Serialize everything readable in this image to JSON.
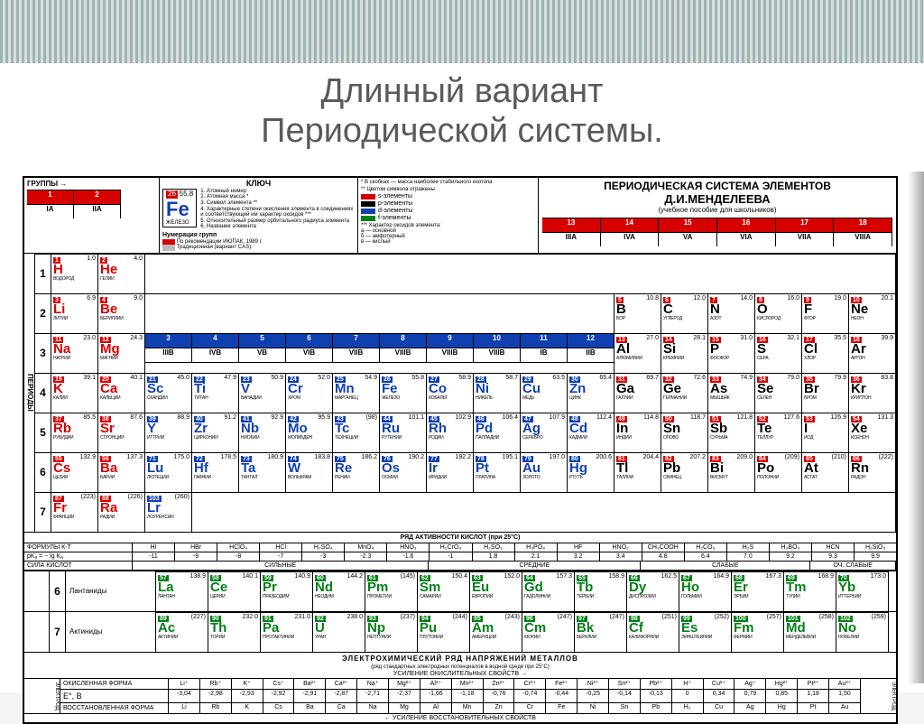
{
  "title_line1": "Длинный вариант",
  "title_line2": "Периодической системы.",
  "labels": {
    "groups": "ГРУППЫ →",
    "periods": "ПЕРИОДЫ",
    "key": "КЛЮЧ",
    "main_title1": "ПЕРИОДИЧЕСКАЯ СИСТЕМА ЭЛЕМЕНТОВ",
    "main_title2": "Д.И.МЕНДЕЛЕЕВА",
    "subtitle": "(учебное пособие для школьников)",
    "legend_caption": "** Цветом символа отражены",
    "legend_s": "s-элементы",
    "legend_p": "p-элементы",
    "legend_d": "d-элементы",
    "legend_f": "f-элементы",
    "key1": "1. Атомный номер",
    "key2": "2. Атомная масса *",
    "key3": "3. Символ элемента **",
    "key4": "4. Характерные степени окисления элемента в соединениях и соответствующий им характер оксидов ***",
    "key5": "5. Относительный размер орбитального радиуса элемента",
    "key6": "6. Название элемента",
    "nummer": "Нумерация групп",
    "iupac": "По рекомендации ИЮПАК, 1989 г.",
    "cas": "Традиционная (вариант CAS)",
    "stable": "* В скобках — масса наиболее стабильного изотопа",
    "oxide_char": "*** Характер оксидов элемента:",
    "ox_a": "а — основной",
    "ox_b": "б — амфотерный",
    "ox_c": "в — кислый",
    "ox_abc": "а б в"
  },
  "fe": {
    "num": "26",
    "mass": "55.8",
    "sym": "Fe",
    "name": "ЖЕЛЕЗО"
  },
  "groups_iupac": [
    "1",
    "2",
    "3",
    "4",
    "5",
    "6",
    "7",
    "8",
    "9",
    "10",
    "11",
    "12",
    "13",
    "14",
    "15",
    "16",
    "17",
    "18"
  ],
  "groups_cas": [
    "IA",
    "IIA",
    "IIIB",
    "IVB",
    "VB",
    "VIB",
    "VIIB",
    "VIIIB",
    "VIIIB",
    "VIIIB",
    "IB",
    "IIB",
    "IIIA",
    "IVA",
    "VA",
    "VIA",
    "VIIA",
    "VIIIA"
  ],
  "periods": [
    [
      {
        "n": 1,
        "m": "1.0",
        "s": "H",
        "c": "s",
        "nm": "ВОДОРОД"
      },
      {
        "n": 2,
        "m": "4.0",
        "s": "He",
        "c": "s",
        "nm": "ГЕЛИЙ"
      }
    ],
    [
      {
        "n": 3,
        "m": "6.9",
        "s": "Li",
        "c": "s",
        "nm": "ЛИТИЙ"
      },
      {
        "n": 4,
        "m": "9.0",
        "s": "Be",
        "c": "s",
        "nm": "БЕРИЛЛИЙ"
      },
      null,
      null,
      null,
      null,
      null,
      null,
      null,
      null,
      null,
      null,
      {
        "n": 5,
        "m": "10.8",
        "s": "B",
        "c": "p",
        "nm": "БОР"
      },
      {
        "n": 6,
        "m": "12.0",
        "s": "C",
        "c": "p",
        "nm": "УГЛЕРОД"
      },
      {
        "n": 7,
        "m": "14.0",
        "s": "N",
        "c": "p",
        "nm": "АЗОТ"
      },
      {
        "n": 8,
        "m": "16.0",
        "s": "O",
        "c": "p",
        "nm": "КИСЛОРОД"
      },
      {
        "n": 9,
        "m": "19.0",
        "s": "F",
        "c": "p",
        "nm": "ФТОР"
      },
      {
        "n": 10,
        "m": "20.1",
        "s": "Ne",
        "c": "p",
        "nm": "НЕОН"
      }
    ],
    [
      {
        "n": 11,
        "m": "23.0",
        "s": "Na",
        "c": "s",
        "nm": "НАТРИЙ"
      },
      {
        "n": 12,
        "m": "24.3",
        "s": "Mg",
        "c": "s",
        "nm": "МАГНИЙ"
      },
      null,
      null,
      null,
      null,
      null,
      null,
      null,
      null,
      null,
      null,
      {
        "n": 13,
        "m": "27.0",
        "s": "Al",
        "c": "p",
        "nm": "АЛЮМИНИЙ"
      },
      {
        "n": 14,
        "m": "28.1",
        "s": "Si",
        "c": "p",
        "nm": "КРЕМНИЙ"
      },
      {
        "n": 15,
        "m": "31.0",
        "s": "P",
        "c": "p",
        "nm": "ФОСФОР"
      },
      {
        "n": 16,
        "m": "32.1",
        "s": "S",
        "c": "p",
        "nm": "СЕРА"
      },
      {
        "n": 17,
        "m": "35.5",
        "s": "Cl",
        "c": "p",
        "nm": "ХЛОР"
      },
      {
        "n": 18,
        "m": "39.9",
        "s": "Ar",
        "c": "p",
        "nm": "АРГОН"
      }
    ],
    [
      {
        "n": 19,
        "m": "39.1",
        "s": "K",
        "c": "s",
        "nm": "КАЛИЙ"
      },
      {
        "n": 20,
        "m": "40.1",
        "s": "Ca",
        "c": "s",
        "nm": "КАЛЬЦИЙ"
      },
      {
        "n": 21,
        "m": "45.0",
        "s": "Sc",
        "c": "d",
        "nm": "СКАНДИЙ"
      },
      {
        "n": 22,
        "m": "47.9",
        "s": "Ti",
        "c": "d",
        "nm": "ТИТАН"
      },
      {
        "n": 23,
        "m": "50.9",
        "s": "V",
        "c": "d",
        "nm": "ВАНАДИЙ"
      },
      {
        "n": 24,
        "m": "52.0",
        "s": "Cr",
        "c": "d",
        "nm": "ХРОМ"
      },
      {
        "n": 25,
        "m": "54.9",
        "s": "Mn",
        "c": "d",
        "nm": "МАРГАНЕЦ"
      },
      {
        "n": 26,
        "m": "55.8",
        "s": "Fe",
        "c": "d",
        "nm": "ЖЕЛЕЗО"
      },
      {
        "n": 27,
        "m": "58.9",
        "s": "Co",
        "c": "d",
        "nm": "КОБАЛЬТ"
      },
      {
        "n": 28,
        "m": "58.7",
        "s": "Ni",
        "c": "d",
        "nm": "НИКЕЛЬ"
      },
      {
        "n": 29,
        "m": "63.5",
        "s": "Cu",
        "c": "d",
        "nm": "МЕДЬ"
      },
      {
        "n": 30,
        "m": "65.4",
        "s": "Zn",
        "c": "d",
        "nm": "ЦИНК"
      },
      {
        "n": 31,
        "m": "69.7",
        "s": "Ga",
        "c": "p",
        "nm": "ГАЛЛИЙ"
      },
      {
        "n": 32,
        "m": "72.6",
        "s": "Ge",
        "c": "p",
        "nm": "ГЕРМАНИЙ"
      },
      {
        "n": 33,
        "m": "74.9",
        "s": "As",
        "c": "p",
        "nm": "МЫШЬЯК"
      },
      {
        "n": 34,
        "m": "79.0",
        "s": "Se",
        "c": "p",
        "nm": "СЕЛЕН"
      },
      {
        "n": 35,
        "m": "79.9",
        "s": "Br",
        "c": "p",
        "nm": "БРОМ"
      },
      {
        "n": 36,
        "m": "83.8",
        "s": "Kr",
        "c": "p",
        "nm": "КРИПТОН"
      }
    ],
    [
      {
        "n": 37,
        "m": "85.5",
        "s": "Rb",
        "c": "s",
        "nm": "РУБИДИЙ"
      },
      {
        "n": 38,
        "m": "87.6",
        "s": "Sr",
        "c": "s",
        "nm": "СТРОНЦИЙ"
      },
      {
        "n": 39,
        "m": "88.9",
        "s": "Y",
        "c": "d",
        "nm": "ИТТРИЙ"
      },
      {
        "n": 40,
        "m": "91.2",
        "s": "Zr",
        "c": "d",
        "nm": "ЦИРКОНИЙ"
      },
      {
        "n": 41,
        "m": "92.9",
        "s": "Nb",
        "c": "d",
        "nm": "НИОБИЙ"
      },
      {
        "n": 42,
        "m": "95.9",
        "s": "Mo",
        "c": "d",
        "nm": "МОЛИБДЕН"
      },
      {
        "n": 43,
        "m": "(98)",
        "s": "Tc",
        "c": "d",
        "nm": "ТЕХНЕЦИЙ"
      },
      {
        "n": 44,
        "m": "101.1",
        "s": "Ru",
        "c": "d",
        "nm": "РУТЕНИЙ"
      },
      {
        "n": 45,
        "m": "102.9",
        "s": "Rh",
        "c": "d",
        "nm": "РОДИЙ"
      },
      {
        "n": 46,
        "m": "106.4",
        "s": "Pd",
        "c": "d",
        "nm": "ПАЛЛАДИЙ"
      },
      {
        "n": 47,
        "m": "107.9",
        "s": "Ag",
        "c": "d",
        "nm": "СЕРЕБРО"
      },
      {
        "n": 48,
        "m": "112.4",
        "s": "Cd",
        "c": "d",
        "nm": "КАДМИЙ"
      },
      {
        "n": 49,
        "m": "114.8",
        "s": "In",
        "c": "p",
        "nm": "ИНДИЙ"
      },
      {
        "n": 50,
        "m": "118.7",
        "s": "Sn",
        "c": "p",
        "nm": "ОЛОВО"
      },
      {
        "n": 51,
        "m": "121.8",
        "s": "Sb",
        "c": "p",
        "nm": "СУРЬМА"
      },
      {
        "n": 52,
        "m": "127.6",
        "s": "Te",
        "c": "p",
        "nm": "ТЕЛЛУР"
      },
      {
        "n": 53,
        "m": "126.9",
        "s": "I",
        "c": "p",
        "nm": "ИОД"
      },
      {
        "n": 54,
        "m": "131.3",
        "s": "Xe",
        "c": "p",
        "nm": "КСЕНОН"
      }
    ],
    [
      {
        "n": 55,
        "m": "132.9",
        "s": "Cs",
        "c": "s",
        "nm": "ЦЕЗИЙ"
      },
      {
        "n": 56,
        "m": "137.3",
        "s": "Ba",
        "c": "s",
        "nm": "БАРИЙ"
      },
      {
        "n": 71,
        "m": "175.0",
        "s": "Lu",
        "c": "d",
        "nm": "ЛЮТЕЦИЙ"
      },
      {
        "n": 72,
        "m": "178.5",
        "s": "Hf",
        "c": "d",
        "nm": "ГАФНИЙ"
      },
      {
        "n": 73,
        "m": "180.9",
        "s": "Ta",
        "c": "d",
        "nm": "ТАНТАЛ"
      },
      {
        "n": 74,
        "m": "183.8",
        "s": "W",
        "c": "d",
        "nm": "ВОЛЬФРАМ"
      },
      {
        "n": 75,
        "m": "186.2",
        "s": "Re",
        "c": "d",
        "nm": "РЕНИЙ"
      },
      {
        "n": 76,
        "m": "190.2",
        "s": "Os",
        "c": "d",
        "nm": "ОСМИЙ"
      },
      {
        "n": 77,
        "m": "192.2",
        "s": "Ir",
        "c": "d",
        "nm": "ИРИДИЙ"
      },
      {
        "n": 78,
        "m": "195.1",
        "s": "Pt",
        "c": "d",
        "nm": "ПЛАТИНА"
      },
      {
        "n": 79,
        "m": "197.0",
        "s": "Au",
        "c": "d",
        "nm": "ЗОЛОТО"
      },
      {
        "n": 80,
        "m": "200.6",
        "s": "Hg",
        "c": "d",
        "nm": "РТУТЬ"
      },
      {
        "n": 81,
        "m": "204.4",
        "s": "Tl",
        "c": "p",
        "nm": "ТАЛЛИЙ"
      },
      {
        "n": 82,
        "m": "207.2",
        "s": "Pb",
        "c": "p",
        "nm": "СВИНЕЦ"
      },
      {
        "n": 83,
        "m": "209.0",
        "s": "Bi",
        "c": "p",
        "nm": "ВИСМУТ"
      },
      {
        "n": 84,
        "m": "(209)",
        "s": "Po",
        "c": "p",
        "nm": "ПОЛОНИЙ"
      },
      {
        "n": 85,
        "m": "(210)",
        "s": "At",
        "c": "p",
        "nm": "АСТАТ"
      },
      {
        "n": 86,
        "m": "(222)",
        "s": "Rn",
        "c": "p",
        "nm": "РАДОН"
      }
    ],
    [
      {
        "n": 87,
        "m": "(223)",
        "s": "Fr",
        "c": "s",
        "nm": "ФРАНЦИЙ"
      },
      {
        "n": 88,
        "m": "(226)",
        "s": "Ra",
        "c": "s",
        "nm": "РАДИЙ"
      },
      {
        "n": 103,
        "m": "(260)",
        "s": "Lr",
        "c": "d",
        "nm": "ЛОУРЕНСИЙ"
      }
    ]
  ],
  "acid_series": {
    "title": "РЯД АКТИВНОСТИ КИСЛОТ (при 25°С)",
    "row1_label": "ФОРМУЛЫ К-Т",
    "row1": [
      "HI",
      "HBr",
      "HClO₄",
      "HCl",
      "H₂SO₄",
      "MnO₄",
      "HNO₃",
      "H₂CrO₄",
      "H₂SO₃",
      "H₃PO₄",
      "HF",
      "HNO₂",
      "CH₃COOH",
      "H₂CO₃",
      "H₂S",
      "H₃BO₃",
      "HCN",
      "H₂SiO₃"
    ],
    "row2_label": "pKₐ = − lg Kₐ",
    "row2": [
      "-11",
      "-9",
      "-8",
      "-7",
      "-3",
      "-2.3",
      "-1.6",
      "-1",
      "1.8",
      "2.1",
      "3.2",
      "3.4",
      "4.8",
      "6.4",
      "7.0",
      "9.2",
      "9.3",
      "9.9"
    ],
    "strength_label": "СИЛА КИСЛОТ",
    "strength_groups": [
      "СИЛЬНЫЕ",
      "СРЕДНИЕ",
      "СЛАБЫЕ",
      "ОЧ. СЛАБЫЕ"
    ]
  },
  "lanthanides": {
    "label6": "Лантаниды",
    "label7": "Актиниды",
    "p6": "6",
    "p7": "7",
    "row6": [
      {
        "n": 57,
        "m": "138.9",
        "s": "La",
        "nm": "ЛАНТАН"
      },
      {
        "n": 58,
        "m": "140.1",
        "s": "Ce",
        "nm": "ЦЕРИЙ"
      },
      {
        "n": 59,
        "m": "140.9",
        "s": "Pr",
        "nm": "ПРАЗЕОДИМ"
      },
      {
        "n": 60,
        "m": "144.2",
        "s": "Nd",
        "nm": "НЕОДИМ"
      },
      {
        "n": 61,
        "m": "(145)",
        "s": "Pm",
        "nm": "ПРОМЕТИЙ"
      },
      {
        "n": 62,
        "m": "150.4",
        "s": "Sm",
        "nm": "САМАРИЙ"
      },
      {
        "n": 63,
        "m": "152.0",
        "s": "Eu",
        "nm": "ЕВРОПИЙ"
      },
      {
        "n": 64,
        "m": "157.3",
        "s": "Gd",
        "nm": "ГАДОЛИНИЙ"
      },
      {
        "n": 65,
        "m": "158.9",
        "s": "Tb",
        "nm": "ТЕРБИЙ"
      },
      {
        "n": 66,
        "m": "162.5",
        "s": "Dy",
        "nm": "ДИСПРОЗИЙ"
      },
      {
        "n": 67,
        "m": "164.9",
        "s": "Ho",
        "nm": "ГОЛЬМИЙ"
      },
      {
        "n": 68,
        "m": "167.3",
        "s": "Er",
        "nm": "ЭРБИЙ"
      },
      {
        "n": 69,
        "m": "168.9",
        "s": "Tm",
        "nm": "ТУЛИЙ"
      },
      {
        "n": 70,
        "m": "173.0",
        "s": "Yb",
        "nm": "ИТТЕРБИЙ"
      }
    ],
    "row7": [
      {
        "n": 89,
        "m": "(227)",
        "s": "Ac",
        "nm": "АКТИНИЙ"
      },
      {
        "n": 90,
        "m": "232.0",
        "s": "Th",
        "nm": "ТОРИЙ"
      },
      {
        "n": 91,
        "m": "231.0",
        "s": "Pa",
        "nm": "ПРОТАКТИНИЙ"
      },
      {
        "n": 92,
        "m": "238.0",
        "s": "U",
        "nm": "УРАН"
      },
      {
        "n": 93,
        "m": "(237)",
        "s": "Np",
        "nm": "НЕПТУНИЙ"
      },
      {
        "n": 94,
        "m": "(244)",
        "s": "Pu",
        "nm": "ПЛУТОНИЙ"
      },
      {
        "n": 95,
        "m": "(243)",
        "s": "Am",
        "nm": "АМЕРИЦИЙ"
      },
      {
        "n": 96,
        "m": "(247)",
        "s": "Cm",
        "nm": "КЮРИЙ"
      },
      {
        "n": 97,
        "m": "(247)",
        "s": "Bk",
        "nm": "БЕРКЛИЙ"
      },
      {
        "n": 98,
        "m": "(251)",
        "s": "Cf",
        "nm": "КАЛИФОРНИЙ"
      },
      {
        "n": 99,
        "m": "(252)",
        "s": "Es",
        "nm": "ЭЙНШТЕЙНИЙ"
      },
      {
        "n": 100,
        "m": "(257)",
        "s": "Fm",
        "nm": "ФЕРМИЙ"
      },
      {
        "n": 101,
        "m": "(258)",
        "s": "Md",
        "nm": "МЕНДЕЛЕВИЙ"
      },
      {
        "n": 102,
        "m": "(259)",
        "s": "No",
        "nm": "НОБЕЛИЙ"
      }
    ]
  },
  "potentials": {
    "title": "ЭЛЕКТРОХИМИЧЕСКИЙ РЯД НАПРЯЖЕНИЙ МЕТАЛЛОВ",
    "sub": "(ряд стандартных электродных потенциалов в водной среде при 25°С)",
    "arrow_ox": "УСИЛЕНИЕ ОКИСЛИТЕЛЬНЫХ СВОЙСТВ →",
    "arrow_red": "← УСИЛЕНИЕ ВОССТАНОВИТЕЛЬНЫХ СВОЙСТВ",
    "row1_label": "ОКИСЛЕННАЯ ФОРМА",
    "row1": [
      "Li⁺",
      "Rb⁺",
      "K⁺",
      "Cs⁺",
      "Ba²⁺",
      "Ca²⁺",
      "Na⁺",
      "Mg²⁺",
      "Al³⁺",
      "Mn²⁺",
      "Zn²⁺",
      "Cr³⁺",
      "Fe²⁺",
      "Ni²⁺",
      "Sn²⁺",
      "Pb²⁺",
      "H⁺",
      "Cu²⁺",
      "Ag⁺",
      "Hg²⁺",
      "Pt²⁺",
      "Au³⁺"
    ],
    "row2_label": "E°, В",
    "row2": [
      "-3,04",
      "-2,98",
      "-2,93",
      "-2,92",
      "-2,91",
      "-2,87",
      "-2,71",
      "-2,37",
      "-1,66",
      "-1,18",
      "-0,76",
      "-0,74",
      "-0,44",
      "-0,25",
      "-0,14",
      "-0,13",
      "0",
      "0,34",
      "0,79",
      "0,85",
      "1,18",
      "1,50"
    ],
    "row3_label": "ВОССТАНОВЛЕННАЯ ФОРМА",
    "row3": [
      "Li",
      "Rb",
      "K",
      "Cs",
      "Ba",
      "Ca",
      "Na",
      "Mg",
      "Al",
      "Mn",
      "Zn",
      "Cr",
      "Fe",
      "Ni",
      "Sn",
      "Pb",
      "H₂",
      "Cu",
      "Ag",
      "Hg",
      "Pt",
      "Au"
    ],
    "electrode": "ЭЛЕКТРОД"
  }
}
